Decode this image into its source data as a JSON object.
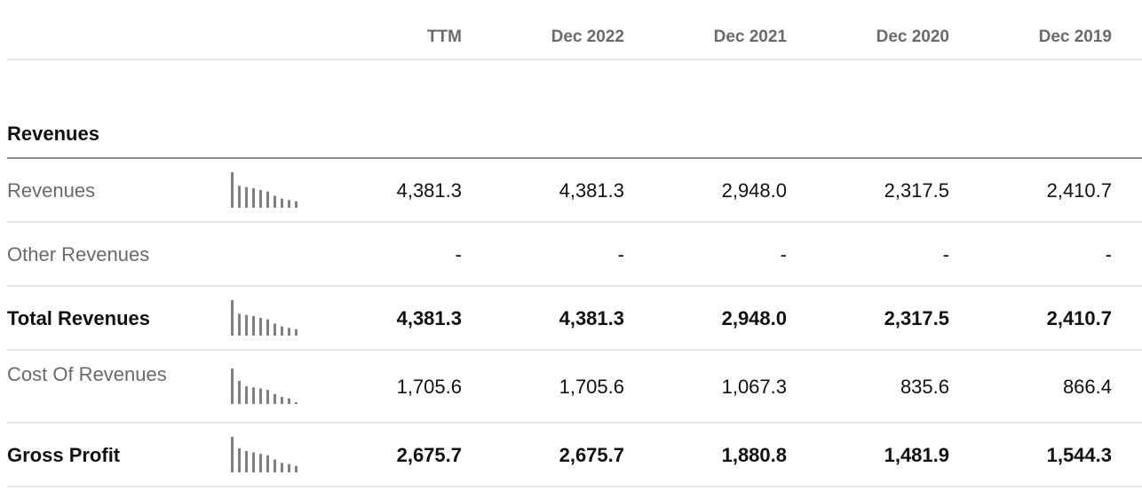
{
  "columns": [
    "TTM",
    "Dec 2022",
    "Dec 2021",
    "Dec 2020",
    "Dec 2019"
  ],
  "section": {
    "title": "Revenues"
  },
  "rows": [
    {
      "label": "Revenues",
      "bold": false,
      "sparkline": true,
      "values": [
        "4,381.3",
        "4,381.3",
        "2,948.0",
        "2,317.5",
        "2,410.7"
      ]
    },
    {
      "label": "Other Revenues",
      "bold": false,
      "sparkline": false,
      "values": [
        "-",
        "-",
        "-",
        "-",
        "-"
      ]
    },
    {
      "label": "Total Revenues",
      "bold": true,
      "sparkline": true,
      "values": [
        "4,381.3",
        "4,381.3",
        "2,948.0",
        "2,317.5",
        "2,410.7"
      ]
    },
    {
      "label": "Cost Of Revenues",
      "bold": false,
      "sparkline": true,
      "values": [
        "1,705.6",
        "1,705.6",
        "1,067.3",
        "835.6",
        "866.4"
      ]
    },
    {
      "label": "Gross Profit",
      "bold": true,
      "sparkline": true,
      "values": [
        "2,675.7",
        "2,675.7",
        "1,880.8",
        "1,481.9",
        "1,544.3"
      ]
    }
  ],
  "sparkline_history": {
    "Revenues": [
      1.0,
      0.62,
      0.58,
      0.55,
      0.5,
      0.46,
      0.34,
      0.26,
      0.22,
      0.18
    ],
    "Total Revenues": [
      1.0,
      0.62,
      0.58,
      0.55,
      0.5,
      0.46,
      0.34,
      0.26,
      0.22,
      0.18
    ],
    "Cost Of Revenues": [
      1.0,
      0.65,
      0.5,
      0.47,
      0.44,
      0.4,
      0.28,
      0.2,
      0.16,
      0.05
    ],
    "Gross Profit": [
      1.0,
      0.68,
      0.6,
      0.56,
      0.52,
      0.48,
      0.36,
      0.27,
      0.23,
      0.18
    ]
  },
  "colors": {
    "sparkline": "#808080",
    "divider": "#e6e6e6",
    "section_rule": "#8e8e8e",
    "header_text": "#6b6b6b"
  }
}
